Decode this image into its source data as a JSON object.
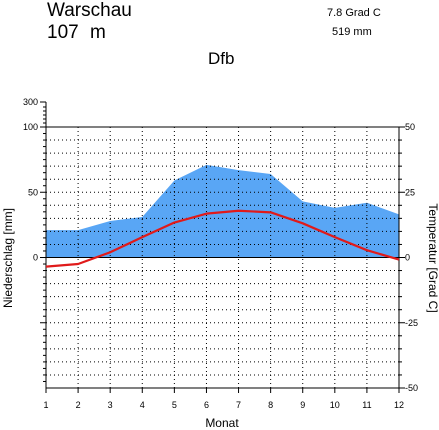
{
  "header": {
    "station": "Warschau",
    "elevation": "107  m",
    "mean_temperature": "7.8 Grad C",
    "annual_precipitation": "519 mm",
    "climate_class": "Dfb"
  },
  "chart_data": {
    "type": "area",
    "x": [
      1,
      2,
      3,
      4,
      5,
      6,
      7,
      8,
      9,
      10,
      11,
      12
    ],
    "xlabel": "Monat",
    "ylabel_left": "Niederschlag [mm]",
    "ylabel_right": "Temperatur [Grad C]",
    "left_ticks": [
      "300",
      "100",
      "50",
      "0"
    ],
    "right_ticks": [
      "50",
      "25",
      "0",
      "-25",
      "-50"
    ],
    "precip_ylim": [
      -100,
      100
    ],
    "temp_ylim": [
      -50,
      50
    ],
    "grid": true,
    "colors": {
      "precipitation": "#59a6f5",
      "temperature": "#e01a1a"
    },
    "series": [
      {
        "key": "precipitation",
        "values": [
          21,
          21,
          28,
          31,
          59,
          71,
          67,
          64,
          43,
          38,
          42,
          33
        ]
      },
      {
        "key": "temperature",
        "values": [
          -3.5,
          -2.5,
          2.0,
          7.8,
          13.4,
          16.8,
          17.9,
          17.3,
          13.1,
          7.8,
          2.8,
          -0.8
        ]
      }
    ]
  }
}
